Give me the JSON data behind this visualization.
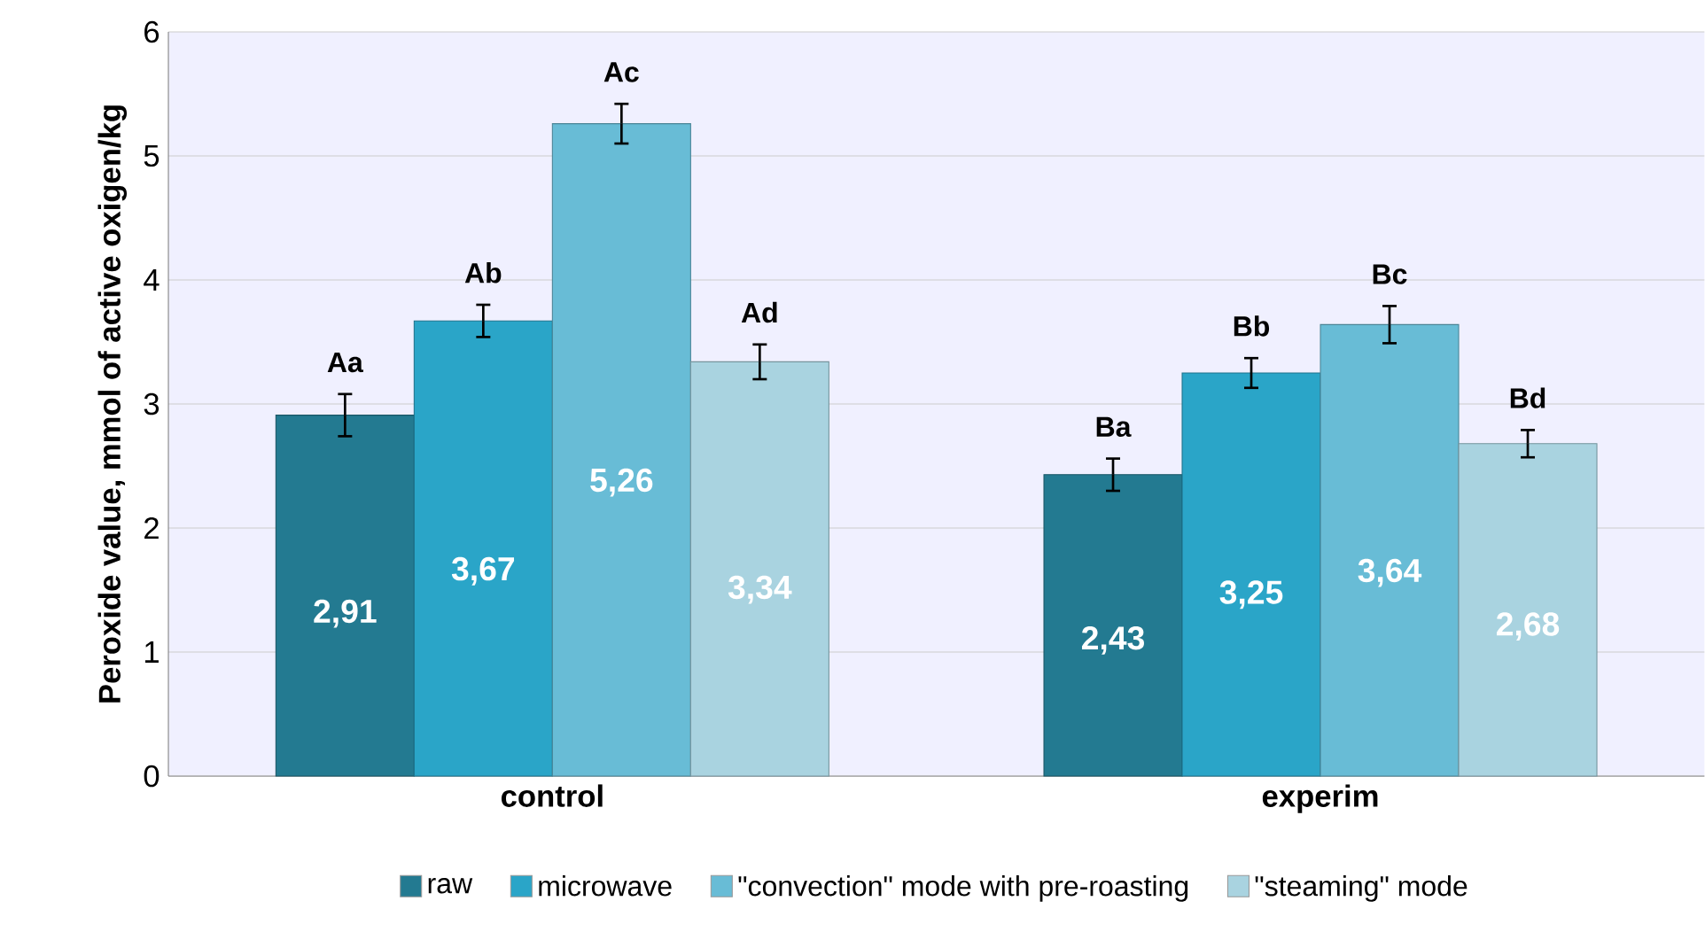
{
  "chart_data": {
    "type": "bar",
    "ylabel": "Peroxide value, mmol of active oxigen/kg",
    "categories": [
      "control",
      "experim"
    ],
    "series": [
      {
        "name": "raw",
        "color": "#237a91",
        "values": [
          2.91,
          2.43
        ],
        "errors": [
          0.17,
          0.13
        ],
        "value_labels": [
          "2,91",
          "2,43"
        ]
      },
      {
        "name": "microwave",
        "color": "#2aa5c8",
        "values": [
          3.67,
          3.25
        ],
        "errors": [
          0.13,
          0.12
        ],
        "value_labels": [
          "3,67",
          "3,25"
        ]
      },
      {
        "name": "\"convection\" mode with pre-roasting",
        "color": "#68bcd6",
        "values": [
          5.26,
          3.64
        ],
        "errors": [
          0.16,
          0.15
        ],
        "value_labels": [
          "5,26",
          "3,64"
        ]
      },
      {
        "name": "\"steaming\" mode",
        "color": "#a9d3e0",
        "values": [
          3.34,
          2.68
        ],
        "errors": [
          0.14,
          0.11
        ],
        "value_labels": [
          "3,34",
          "2,68"
        ]
      }
    ],
    "annotations": [
      "Aa",
      "Ab",
      "Ac",
      "Ad",
      "Ba",
      "Bb",
      "Bc",
      "Bd"
    ],
    "ylim": [
      0,
      6
    ],
    "yticks": [
      0,
      1,
      2,
      3,
      4,
      5,
      6
    ],
    "grid": "y",
    "legend": "bottom"
  }
}
